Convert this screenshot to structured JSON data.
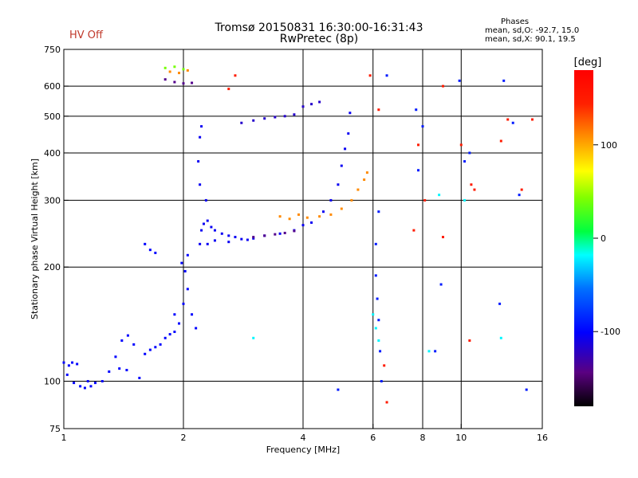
{
  "header": {
    "title_line1": "Tromsø 20150831 16:30:00-16:31:43",
    "title_line2": "RwPretec (8p)",
    "status": "HV Off",
    "phases_title": "Phases",
    "phases_o": "mean, sd,O: -92.7, 15.0",
    "phases_x": "mean, sd,X:  90.1, 19.5"
  },
  "chart_data": {
    "type": "scatter",
    "xlabel": "Frequency [MHz]",
    "ylabel": "Stationary phase Virtual Height [km]",
    "x_scale": "log",
    "y_scale": "log",
    "xlim": [
      1,
      16
    ],
    "ylim": [
      75,
      750
    ],
    "xticks": [
      1,
      2,
      4,
      6,
      8,
      10,
      16
    ],
    "yticks": [
      75,
      100,
      200,
      300,
      400,
      500,
      600,
      750
    ],
    "vertical_gridlines": [
      2,
      4,
      6,
      8,
      10
    ],
    "horizontal_gridlines": [
      100,
      200,
      300,
      400,
      500,
      600
    ],
    "colorbar": {
      "label": "[deg]",
      "ticks": [
        100,
        0,
        -100
      ],
      "range": [
        -180,
        180
      ]
    },
    "groups": [
      {
        "phase": -100,
        "points": [
          [
            1.0,
            112
          ],
          [
            1.03,
            110
          ],
          [
            1.05,
            112
          ],
          [
            1.08,
            111
          ],
          [
            1.02,
            104
          ],
          [
            1.06,
            99
          ],
          [
            1.1,
            97
          ],
          [
            1.13,
            96
          ],
          [
            1.17,
            97
          ],
          [
            1.2,
            99
          ],
          [
            1.25,
            100
          ],
          [
            1.15,
            100
          ],
          [
            1.3,
            106
          ],
          [
            1.35,
            116
          ],
          [
            1.4,
            128
          ],
          [
            1.45,
            132
          ],
          [
            1.5,
            125
          ],
          [
            1.38,
            108
          ],
          [
            1.44,
            107
          ],
          [
            1.55,
            102
          ],
          [
            1.6,
            118
          ],
          [
            1.65,
            121
          ],
          [
            1.7,
            123
          ],
          [
            1.75,
            125
          ],
          [
            1.8,
            130
          ],
          [
            1.85,
            133
          ],
          [
            1.9,
            135
          ],
          [
            1.95,
            142
          ],
          [
            1.9,
            150
          ],
          [
            2.0,
            160
          ],
          [
            2.05,
            175
          ],
          [
            2.02,
            195
          ],
          [
            1.98,
            205
          ],
          [
            2.05,
            215
          ],
          [
            2.1,
            150
          ],
          [
            2.15,
            138
          ],
          [
            1.6,
            230
          ],
          [
            1.65,
            222
          ],
          [
            1.7,
            218
          ]
        ]
      },
      {
        "phase": -105,
        "points": [
          [
            2.2,
            230
          ],
          [
            2.22,
            250
          ],
          [
            2.25,
            260
          ],
          [
            2.28,
            300
          ],
          [
            2.2,
            330
          ],
          [
            2.18,
            380
          ],
          [
            2.2,
            440
          ],
          [
            2.22,
            470
          ],
          [
            2.3,
            265
          ],
          [
            2.35,
            255
          ],
          [
            2.4,
            250
          ],
          [
            2.5,
            245
          ],
          [
            2.6,
            242
          ],
          [
            2.7,
            240
          ],
          [
            2.8,
            237
          ],
          [
            2.9,
            236
          ],
          [
            3.0,
            238
          ],
          [
            3.2,
            242
          ],
          [
            3.5,
            245
          ],
          [
            3.8,
            250
          ],
          [
            4.0,
            258
          ],
          [
            4.2,
            262
          ],
          [
            4.5,
            280
          ],
          [
            4.7,
            300
          ],
          [
            4.9,
            330
          ],
          [
            5.0,
            370
          ],
          [
            5.1,
            410
          ],
          [
            5.2,
            450
          ],
          [
            5.25,
            510
          ],
          [
            2.3,
            230
          ],
          [
            2.4,
            235
          ],
          [
            2.6,
            233
          ]
        ]
      },
      {
        "phase": -118,
        "points": [
          [
            2.8,
            480
          ],
          [
            3.0,
            487
          ],
          [
            3.2,
            493
          ],
          [
            3.4,
            497
          ],
          [
            3.6,
            500
          ],
          [
            3.8,
            505
          ],
          [
            4.0,
            530
          ],
          [
            4.2,
            538
          ],
          [
            4.4,
            545
          ]
        ]
      },
      {
        "phase": -140,
        "points": [
          [
            3.0,
            240
          ],
          [
            3.2,
            242
          ],
          [
            3.4,
            244
          ],
          [
            3.6,
            246
          ],
          [
            3.8,
            249
          ],
          [
            1.8,
            625
          ],
          [
            1.9,
            615
          ],
          [
            2.0,
            610
          ],
          [
            2.1,
            612
          ]
        ]
      },
      {
        "phase": 110,
        "points": [
          [
            3.5,
            272
          ],
          [
            3.7,
            268
          ],
          [
            3.9,
            275
          ],
          [
            4.1,
            270
          ],
          [
            4.4,
            272
          ],
          [
            4.7,
            275
          ],
          [
            5.0,
            285
          ],
          [
            5.3,
            300
          ],
          [
            5.5,
            320
          ],
          [
            5.7,
            340
          ],
          [
            5.8,
            355
          ],
          [
            1.85,
            655
          ],
          [
            1.95,
            650
          ],
          [
            2.05,
            660
          ]
        ]
      },
      {
        "phase": 40,
        "points": [
          [
            1.8,
            670
          ],
          [
            1.9,
            675
          ],
          [
            2.0,
            665
          ]
        ]
      },
      {
        "phase": -90,
        "points": [
          [
            6.1,
            190
          ],
          [
            6.15,
            165
          ],
          [
            6.2,
            145
          ],
          [
            6.25,
            120
          ],
          [
            6.3,
            100
          ],
          [
            6.1,
            230
          ],
          [
            6.2,
            280
          ],
          [
            6.5,
            640
          ],
          [
            7.7,
            520
          ],
          [
            7.8,
            360
          ],
          [
            8.0,
            470
          ],
          [
            8.6,
            120
          ],
          [
            8.9,
            180
          ],
          [
            9.9,
            620
          ],
          [
            10.2,
            380
          ],
          [
            10.5,
            400
          ],
          [
            12.8,
            620
          ],
          [
            13.5,
            480
          ],
          [
            14.0,
            310
          ],
          [
            14.6,
            95
          ],
          [
            12.5,
            160
          ],
          [
            4.9,
            95
          ]
        ]
      },
      {
        "phase": 150,
        "points": [
          [
            5.9,
            640
          ],
          [
            6.2,
            520
          ],
          [
            6.4,
            110
          ],
          [
            7.6,
            250
          ],
          [
            7.8,
            420
          ],
          [
            8.1,
            300
          ],
          [
            9.0,
            600
          ],
          [
            9.0,
            240
          ],
          [
            10.0,
            420
          ],
          [
            10.6,
            330
          ],
          [
            10.8,
            320
          ],
          [
            10.5,
            128
          ],
          [
            12.6,
            430
          ],
          [
            13.1,
            490
          ],
          [
            14.2,
            320
          ],
          [
            15.1,
            490
          ],
          [
            6.5,
            88
          ],
          [
            2.6,
            590
          ],
          [
            2.7,
            640
          ]
        ]
      },
      {
        "phase": -20,
        "points": [
          [
            6.0,
            150
          ],
          [
            6.1,
            138
          ],
          [
            6.2,
            128
          ],
          [
            8.3,
            120
          ],
          [
            8.8,
            310
          ],
          [
            3.0,
            130
          ],
          [
            10.2,
            300
          ],
          [
            12.6,
            130
          ]
        ]
      }
    ]
  }
}
